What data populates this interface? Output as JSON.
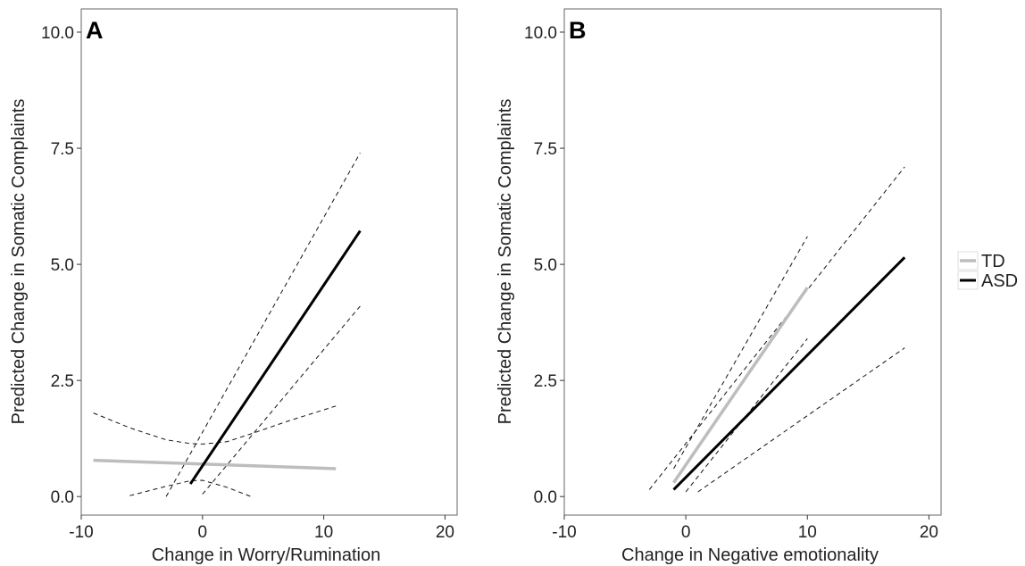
{
  "legend": {
    "items": [
      {
        "label": "TD",
        "color": "#bdbdbd"
      },
      {
        "label": "ASD",
        "color": "#000000"
      }
    ]
  },
  "chart_data": [
    {
      "type": "line",
      "panel": "A",
      "xlabel": "Change in Worry/Rumination",
      "ylabel": "Predicted Change in Somatic Complaints",
      "xlim": [
        -10,
        21
      ],
      "ylim": [
        -0.4,
        10.5
      ],
      "xticks": [
        -10,
        0,
        10,
        20
      ],
      "yticks": [
        "0.0",
        "2.5",
        "5.0",
        "7.5",
        "10.0"
      ],
      "yticks_values": [
        0,
        2.5,
        5,
        7.5,
        10
      ],
      "grid": false,
      "series": [
        {
          "name": "TD",
          "color": "#bdbdbd",
          "width": 3.5,
          "dash": false,
          "x": [
            -9,
            11
          ],
          "y": [
            0.78,
            0.6
          ]
        },
        {
          "name": "ASD",
          "color": "#000000",
          "width": 3,
          "dash": false,
          "x": [
            -1,
            13
          ],
          "y": [
            0.27,
            5.72
          ]
        }
      ],
      "bands": [
        {
          "x": [
            -9,
            -6,
            -3,
            -1,
            0,
            2,
            4,
            7,
            11
          ],
          "y": [
            1.8,
            1.48,
            1.22,
            1.14,
            1.13,
            1.18,
            1.35,
            1.62,
            1.95
          ]
        },
        {
          "x": [
            -6,
            -3,
            -1,
            0,
            2,
            4
          ],
          "y": [
            0.02,
            0.22,
            0.34,
            0.35,
            0.2,
            0.0
          ]
        },
        {
          "x": [
            -3,
            13
          ],
          "y": [
            0.0,
            7.4
          ]
        },
        {
          "x": [
            0,
            13
          ],
          "y": [
            0.05,
            4.1
          ]
        }
      ]
    },
    {
      "type": "line",
      "panel": "B",
      "xlabel": "Change in Negative emotionality",
      "ylabel": "Predicted Change in Somatic Complaints",
      "xlim": [
        -10,
        21
      ],
      "ylim": [
        -0.4,
        10.5
      ],
      "xticks": [
        -10,
        0,
        10,
        20
      ],
      "yticks": [
        "0.0",
        "2.5",
        "5.0",
        "7.5",
        "10.0"
      ],
      "yticks_values": [
        0,
        2.5,
        5,
        7.5,
        10
      ],
      "grid": false,
      "series": [
        {
          "name": "TD",
          "color": "#bdbdbd",
          "width": 3.5,
          "dash": false,
          "x": [
            -1,
            10
          ],
          "y": [
            0.3,
            4.5
          ]
        },
        {
          "name": "ASD",
          "color": "#000000",
          "width": 3,
          "dash": false,
          "x": [
            -1,
            18
          ],
          "y": [
            0.15,
            5.15
          ]
        }
      ],
      "bands": [
        {
          "x": [
            -1,
            10
          ],
          "y": [
            0.6,
            5.6
          ]
        },
        {
          "x": [
            0,
            10
          ],
          "y": [
            0.1,
            3.4
          ]
        },
        {
          "x": [
            -3,
            18
          ],
          "y": [
            0.15,
            7.1
          ]
        },
        {
          "x": [
            1,
            18
          ],
          "y": [
            0.1,
            3.2
          ]
        }
      ]
    }
  ]
}
